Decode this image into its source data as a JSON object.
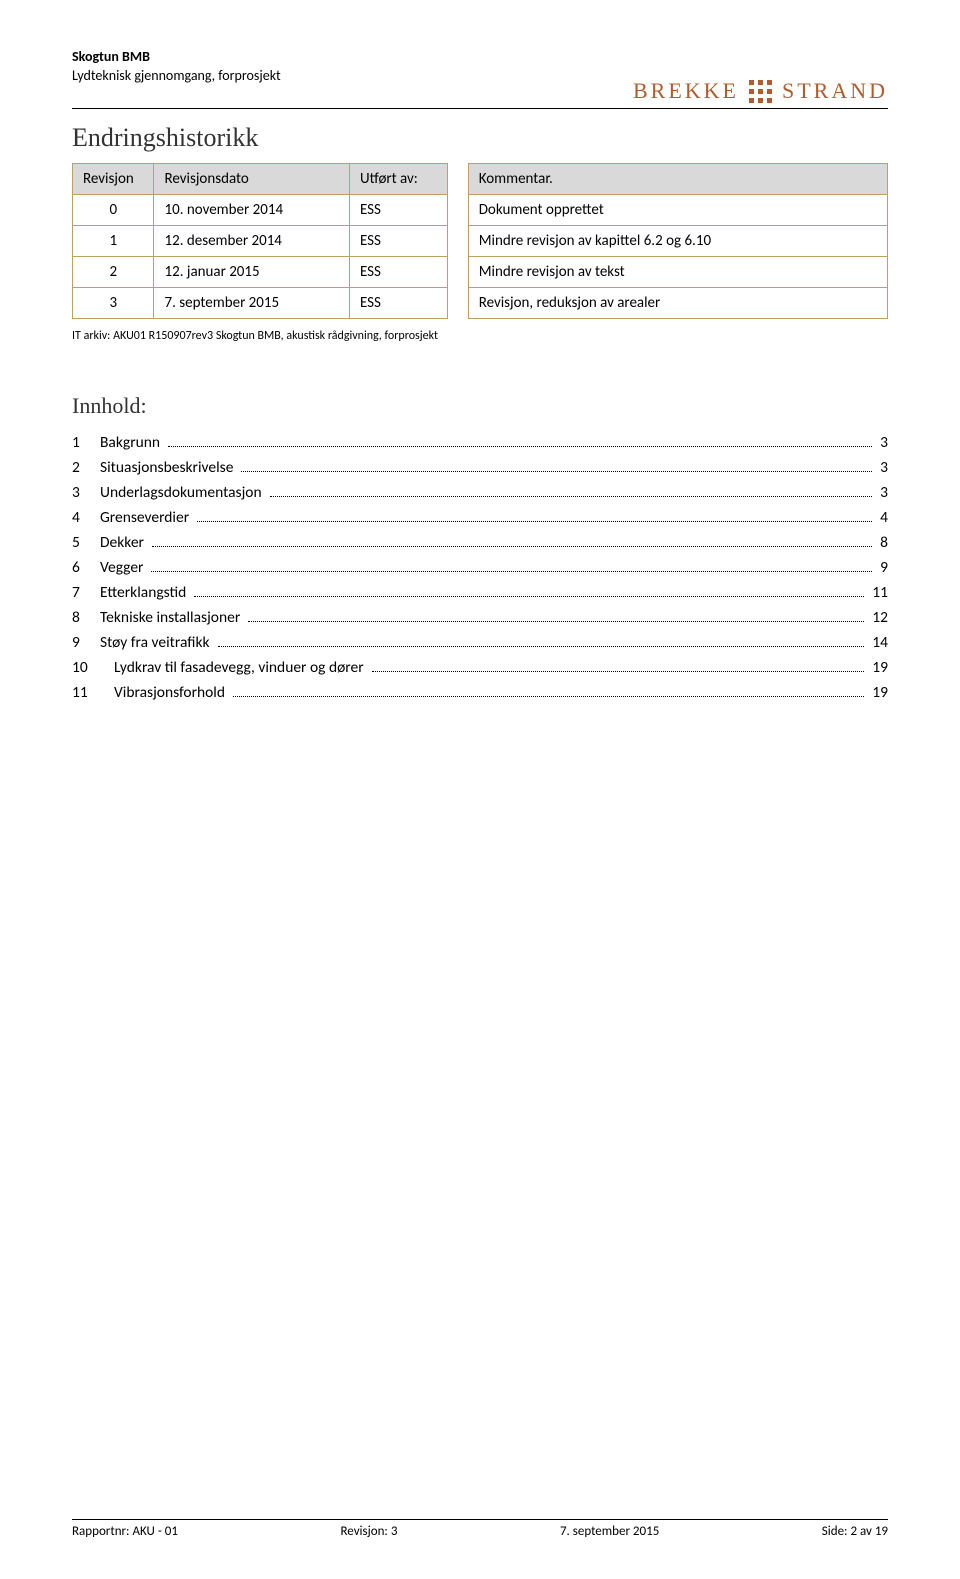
{
  "colors": {
    "brand": "#b05c2e",
    "table_border": "#c0a060",
    "header_bg": "#d9d9d9"
  },
  "header": {
    "title": "Skogtun BMB",
    "subtitle": "Lydteknisk gjennomgang, forprosjekt",
    "logo_left": "BREKKE",
    "logo_right": "STRAND"
  },
  "sections": {
    "history_title": "Endringshistorikk",
    "toc_title": "Innhold:"
  },
  "rev_table": {
    "headers": {
      "revision": "Revisjon",
      "date": "Revisjonsdato",
      "by": "Utført av:",
      "comment": "Kommentar."
    },
    "rows": [
      {
        "rev": "0",
        "date": "10. november 2014",
        "by": "ESS",
        "comment": "Dokument opprettet"
      },
      {
        "rev": "1",
        "date": "12. desember 2014",
        "by": "ESS",
        "comment": "Mindre revisjon av kapittel 6.2 og 6.10"
      },
      {
        "rev": "2",
        "date": "12. januar 2015",
        "by": "ESS",
        "comment": "Mindre revisjon av tekst"
      },
      {
        "rev": "3",
        "date": "7. september 2015",
        "by": "ESS",
        "comment": "Revisjon, reduksjon av arealer"
      }
    ]
  },
  "archive_note": "IT arkiv: AKU01 R150907rev3 Skogtun BMB, akustisk rådgivning, forprosjekt",
  "toc": [
    {
      "num": "1",
      "title": "Bakgrunn",
      "page": "3"
    },
    {
      "num": "2",
      "title": "Situasjonsbeskrivelse",
      "page": "3"
    },
    {
      "num": "3",
      "title": "Underlagsdokumentasjon",
      "page": "3"
    },
    {
      "num": "4",
      "title": "Grenseverdier",
      "page": "4"
    },
    {
      "num": "5",
      "title": "Dekker",
      "page": "8"
    },
    {
      "num": "6",
      "title": "Vegger",
      "page": "9"
    },
    {
      "num": "7",
      "title": "Etterklangstid",
      "page": "11"
    },
    {
      "num": "8",
      "title": "Tekniske installasjoner",
      "page": "12"
    },
    {
      "num": "9",
      "title": "Støy fra veitrafikk",
      "page": "14"
    },
    {
      "num": "10",
      "title": "Lydkrav til fasadevegg, vinduer og dører",
      "page": "19"
    },
    {
      "num": "11",
      "title": "Vibrasjonsforhold",
      "page": "19"
    }
  ],
  "footer": {
    "left": "Rapportnr: AKU - 01",
    "center": "Revisjon: 3",
    "right_date": "7. september 2015",
    "right_page": "Side: 2 av 19"
  }
}
